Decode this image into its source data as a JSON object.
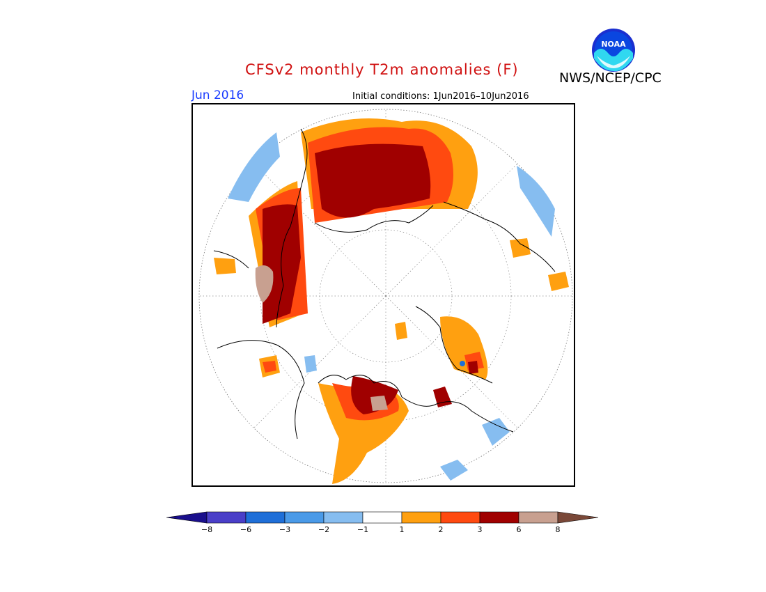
{
  "header": {
    "title": "CFSv2 monthly T2m anomalies (F)",
    "agency": "NWS/NCEP/CPC",
    "logo_text": "NOAA",
    "month": "Jun 2016",
    "initial_conditions": "Initial conditions: 1Jun2016–10Jun2016"
  },
  "map": {
    "projection": "north-polar-stereographic",
    "variable": "T2m anomaly",
    "units": "F"
  },
  "legend": {
    "labels": [
      "−8",
      "−6",
      "−3",
      "−2",
      "−1",
      "1",
      "2",
      "3",
      "6",
      "8"
    ],
    "colors": [
      "#1a0f8c",
      "#4a3fc8",
      "#1f6fd8",
      "#4a9ae8",
      "#86bdf0",
      "#ffffff",
      "#ffa010",
      "#ff4a10",
      "#a00000",
      "#c8a090",
      "#7a4838"
    ],
    "bins": [
      "< -8",
      "-8 to -6",
      "-6 to -3",
      "-3 to -2",
      "-2 to -1",
      "-1 to 1",
      "1 to 2",
      "2 to 3",
      "3 to 6",
      "6 to 8",
      "> 8"
    ]
  }
}
